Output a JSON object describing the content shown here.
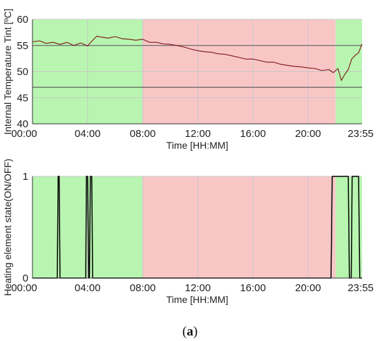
{
  "colors": {
    "green_zone": "#b8f5b0",
    "red_zone": "#f9c6c6",
    "temp_line": "#7a1414",
    "state_line": "#000000",
    "threshold_line": "#555555",
    "grid": "#c8c8c8"
  },
  "caption": {
    "open": "(",
    "letter": "a",
    "close": ")"
  },
  "chart_data": [
    {
      "type": "line",
      "ylabel": "Internal Temperature Tint [ºC]",
      "xlabel": "Time [HH:MM]",
      "xlim": [
        0,
        1435
      ],
      "ylim": [
        40,
        60
      ],
      "x_ticks": [
        0,
        240,
        480,
        720,
        960,
        1200,
        1435
      ],
      "x_tick_labels": [
        "00:00",
        "04:00",
        "08:00",
        "12:00",
        "16:00",
        "20:00",
        "23:55"
      ],
      "y_ticks": [
        40,
        45,
        50,
        55,
        60
      ],
      "y_tick_labels": [
        "40",
        "45",
        "50",
        "55",
        "60"
      ],
      "grid": true,
      "zones": [
        {
          "start": 0,
          "end": 480,
          "state": "green"
        },
        {
          "start": 480,
          "end": 1320,
          "state": "red"
        },
        {
          "start": 1320,
          "end": 1435,
          "state": "green"
        }
      ],
      "threshold_lines": [
        55,
        47
      ],
      "series": [
        {
          "x": [
            0,
            30,
            60,
            90,
            120,
            150,
            180,
            210,
            240,
            260,
            280,
            300,
            330,
            360,
            390,
            420,
            450,
            480,
            510,
            540,
            570,
            600,
            630,
            660,
            690,
            720,
            750,
            780,
            810,
            840,
            870,
            900,
            930,
            960,
            990,
            1020,
            1050,
            1080,
            1110,
            1140,
            1170,
            1200,
            1230,
            1260,
            1290,
            1310,
            1330,
            1345,
            1360,
            1375,
            1390,
            1405,
            1420,
            1435
          ],
          "y": [
            55.7,
            55.9,
            55.4,
            55.6,
            55.2,
            55.6,
            55.0,
            55.5,
            54.9,
            55.9,
            56.8,
            56.6,
            56.4,
            56.7,
            56.3,
            56.2,
            56.0,
            56.2,
            55.6,
            55.6,
            55.3,
            55.2,
            55.0,
            54.7,
            54.3,
            54.0,
            53.8,
            53.7,
            53.4,
            53.3,
            53.0,
            52.7,
            52.4,
            52.4,
            52.1,
            51.8,
            51.8,
            51.4,
            51.2,
            51.0,
            50.9,
            50.7,
            50.6,
            50.2,
            50.4,
            49.8,
            50.6,
            48.3,
            49.5,
            50.4,
            52.4,
            53.1,
            53.6,
            55.3
          ]
        }
      ]
    },
    {
      "type": "line",
      "ylabel": "Heating element state(ON/OFF)",
      "xlabel": "Time [HH:MM]",
      "xlim": [
        0,
        1435
      ],
      "ylim": [
        0,
        1
      ],
      "x_ticks": [
        0,
        240,
        480,
        720,
        960,
        1200,
        1435
      ],
      "x_tick_labels": [
        "00:00",
        "04:00",
        "08:00",
        "12:00",
        "16:00",
        "20:00",
        "23:55"
      ],
      "y_ticks": [
        0,
        1
      ],
      "y_tick_labels": [
        "0",
        "1"
      ],
      "grid": true,
      "zones": [
        {
          "start": 0,
          "end": 480,
          "state": "green"
        },
        {
          "start": 480,
          "end": 1320,
          "state": "red"
        },
        {
          "start": 1320,
          "end": 1435,
          "state": "green"
        }
      ],
      "series": [
        {
          "x": [
            0,
            108,
            112,
            116,
            120,
            232,
            235,
            240,
            245,
            248,
            252,
            258,
            262,
            1300,
            1305,
            1375,
            1380,
            1388,
            1392,
            1420,
            1425,
            1435
          ],
          "y": [
            0,
            0,
            1,
            1,
            0,
            0,
            1,
            1,
            0,
            0,
            1,
            1,
            0,
            0,
            1,
            1,
            0,
            0,
            1,
            1,
            0,
            0
          ]
        }
      ]
    }
  ]
}
